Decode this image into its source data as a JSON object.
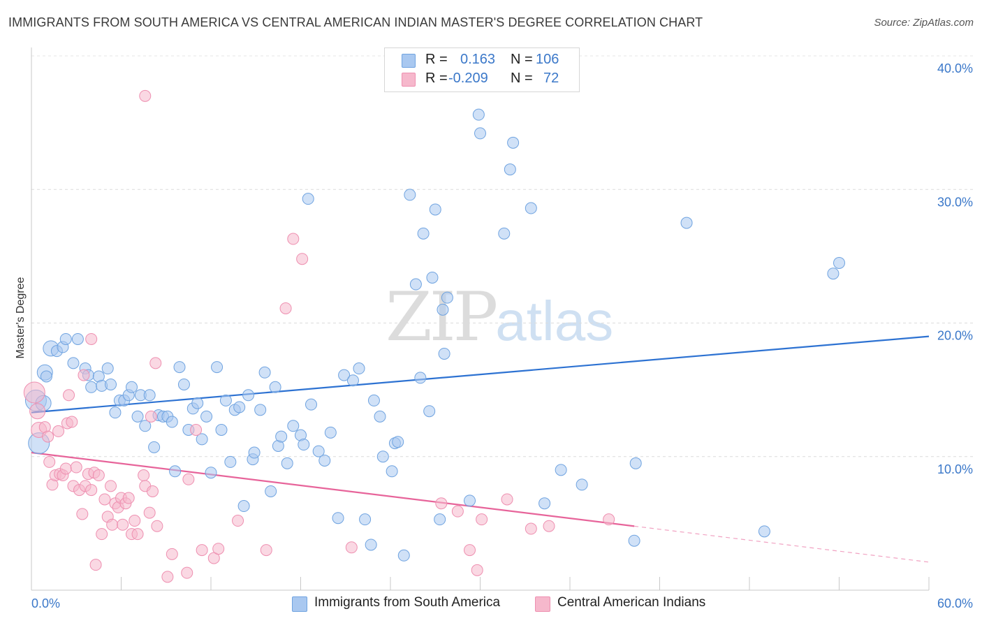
{
  "title": "IMMIGRANTS FROM SOUTH AMERICA VS CENTRAL AMERICAN INDIAN MASTER'S DEGREE CORRELATION CHART",
  "source": "Source: ZipAtlas.com",
  "watermark": {
    "zip": "ZIP",
    "atlas": "atlas"
  },
  "legend": {
    "rows": [
      {
        "r_label": "R =",
        "r_value": "0.163",
        "n_label": "N =",
        "n_value": "106",
        "color": "#a9c8f0"
      },
      {
        "r_label": "R =",
        "r_value": "-0.209",
        "n_label": "N =",
        "n_value": "72",
        "color": "#f6b8cc"
      }
    ]
  },
  "bottom_legend": [
    {
      "label": "Immigrants from South America",
      "color": "#a9c8f0"
    },
    {
      "label": "Central American Indians",
      "color": "#f6b8cc"
    }
  ],
  "chart_data": {
    "type": "scatter",
    "ylabel": "Master's Degree",
    "xlim": [
      0,
      60
    ],
    "ylim": [
      0,
      40
    ],
    "x_tick_labels": [
      "0.0%",
      "60.0%"
    ],
    "y_ticks": [
      10,
      20,
      30,
      40
    ],
    "y_tick_labels": [
      "10.0%",
      "20.0%",
      "30.0%",
      "40.0%"
    ],
    "grid": true,
    "series": [
      {
        "name": "Immigrants from South America",
        "color": "#6fa3e0",
        "fill": "#a9c8f0",
        "trend": {
          "x0": 0,
          "y0": 13.3,
          "x1": 60,
          "y1": 19.0,
          "solid_to": 60
        },
        "points": [
          [
            0.3,
            14.2,
            3
          ],
          [
            0.9,
            16.3,
            2
          ],
          [
            1.3,
            18.1,
            2
          ],
          [
            1.7,
            17.9,
            1
          ],
          [
            2.1,
            18.2,
            1
          ],
          [
            2.3,
            18.8,
            1
          ],
          [
            2.8,
            17.0,
            1
          ],
          [
            3.1,
            18.8,
            1
          ],
          [
            3.6,
            16.6,
            1
          ],
          [
            3.8,
            16.1,
            1
          ],
          [
            4.0,
            15.2,
            1
          ],
          [
            4.5,
            16.0,
            1
          ],
          [
            4.7,
            15.3,
            1
          ],
          [
            5.1,
            16.6,
            1
          ],
          [
            5.3,
            15.4,
            1
          ],
          [
            5.6,
            13.3,
            1
          ],
          [
            5.9,
            14.2,
            1
          ],
          [
            6.2,
            14.2,
            1
          ],
          [
            6.5,
            14.6,
            1
          ],
          [
            6.7,
            15.2,
            1
          ],
          [
            7.1,
            13.0,
            1
          ],
          [
            7.3,
            14.6,
            1
          ],
          [
            7.6,
            12.3,
            1
          ],
          [
            7.9,
            14.6,
            1
          ],
          [
            8.2,
            10.7,
            1
          ],
          [
            8.5,
            13.1,
            1
          ],
          [
            8.8,
            13.0,
            1
          ],
          [
            9.1,
            13.0,
            1
          ],
          [
            9.4,
            12.6,
            1
          ],
          [
            9.6,
            8.9,
            1
          ],
          [
            9.9,
            16.7,
            1
          ],
          [
            10.2,
            15.4,
            1
          ],
          [
            10.5,
            12.0,
            1
          ],
          [
            10.8,
            13.6,
            1
          ],
          [
            11.1,
            14.0,
            1
          ],
          [
            11.4,
            11.3,
            1
          ],
          [
            11.7,
            13.0,
            1
          ],
          [
            12.0,
            8.8,
            1
          ],
          [
            12.4,
            16.7,
            1
          ],
          [
            12.7,
            12.0,
            1
          ],
          [
            13.0,
            14.2,
            1
          ],
          [
            13.3,
            9.6,
            1
          ],
          [
            13.6,
            13.5,
            1
          ],
          [
            13.9,
            13.7,
            1
          ],
          [
            14.2,
            6.3,
            1
          ],
          [
            14.5,
            14.6,
            1
          ],
          [
            14.8,
            9.8,
            1
          ],
          [
            14.9,
            10.3,
            1
          ],
          [
            15.3,
            13.5,
            1
          ],
          [
            15.6,
            16.3,
            1
          ],
          [
            16.0,
            7.4,
            1
          ],
          [
            16.3,
            15.2,
            1
          ],
          [
            16.5,
            10.8,
            1
          ],
          [
            16.7,
            11.5,
            1
          ],
          [
            17.1,
            9.5,
            1
          ],
          [
            17.5,
            12.3,
            1
          ],
          [
            18.0,
            11.6,
            1
          ],
          [
            18.2,
            10.9,
            1
          ],
          [
            18.5,
            29.3,
            1
          ],
          [
            18.7,
            13.9,
            1
          ],
          [
            19.2,
            10.4,
            1
          ],
          [
            19.6,
            9.7,
            1
          ],
          [
            20.0,
            11.8,
            1
          ],
          [
            20.5,
            5.4,
            1
          ],
          [
            20.9,
            16.1,
            1
          ],
          [
            21.5,
            15.7,
            1
          ],
          [
            21.9,
            16.6,
            1
          ],
          [
            22.3,
            5.3,
            1
          ],
          [
            22.7,
            3.4,
            1
          ],
          [
            22.9,
            14.2,
            1
          ],
          [
            23.3,
            13.0,
            1
          ],
          [
            23.5,
            10.0,
            1
          ],
          [
            24.1,
            8.9,
            1
          ],
          [
            24.3,
            11.0,
            1
          ],
          [
            24.5,
            11.1,
            1
          ],
          [
            24.9,
            2.6,
            1
          ],
          [
            25.3,
            29.6,
            1
          ],
          [
            25.7,
            22.9,
            1
          ],
          [
            26.0,
            15.9,
            1
          ],
          [
            26.2,
            26.7,
            1
          ],
          [
            26.6,
            13.4,
            1
          ],
          [
            26.8,
            23.4,
            1
          ],
          [
            27.0,
            28.5,
            1
          ],
          [
            27.3,
            5.3,
            1
          ],
          [
            27.5,
            21.0,
            1
          ],
          [
            27.6,
            17.7,
            1
          ],
          [
            27.8,
            21.9,
            1
          ],
          [
            29.9,
            35.6,
            1
          ],
          [
            29.3,
            6.7,
            1
          ],
          [
            30.0,
            34.2,
            1
          ],
          [
            31.6,
            26.7,
            1
          ],
          [
            32.0,
            31.5,
            1
          ],
          [
            32.2,
            33.5,
            1
          ],
          [
            33.4,
            28.6,
            1
          ],
          [
            34.3,
            6.5,
            1
          ],
          [
            35.4,
            9.0,
            1
          ],
          [
            36.8,
            7.9,
            1
          ],
          [
            40.3,
            3.7,
            1
          ],
          [
            40.4,
            9.5,
            1
          ],
          [
            43.8,
            27.5,
            1
          ],
          [
            49.0,
            4.4,
            1
          ],
          [
            53.6,
            23.7,
            1
          ],
          [
            54.0,
            24.5,
            1
          ],
          [
            0.5,
            11.0,
            3
          ],
          [
            1.0,
            16.0,
            1
          ],
          [
            0.8,
            14.0,
            2
          ]
        ]
      },
      {
        "name": "Central American Indians",
        "color": "#ee8fb0",
        "fill": "#f6b8cc",
        "trend": {
          "x0": 0,
          "y0": 10.3,
          "x1": 60,
          "y1": 2.1,
          "solid_to": 40.3
        },
        "points": [
          [
            0.2,
            14.8,
            3
          ],
          [
            0.4,
            13.4,
            2
          ],
          [
            0.5,
            12.0,
            2
          ],
          [
            0.9,
            12.2,
            1
          ],
          [
            1.1,
            11.5,
            1
          ],
          [
            1.2,
            9.6,
            1
          ],
          [
            1.4,
            7.9,
            1
          ],
          [
            1.6,
            8.6,
            1
          ],
          [
            1.8,
            11.9,
            1
          ],
          [
            1.9,
            8.7,
            1
          ],
          [
            2.1,
            8.6,
            1
          ],
          [
            2.3,
            9.1,
            1
          ],
          [
            2.4,
            12.5,
            1
          ],
          [
            2.5,
            14.6,
            1
          ],
          [
            2.7,
            12.6,
            1
          ],
          [
            2.8,
            7.8,
            1
          ],
          [
            3.0,
            9.2,
            1
          ],
          [
            3.2,
            7.5,
            1
          ],
          [
            3.4,
            5.7,
            1
          ],
          [
            3.6,
            7.8,
            1
          ],
          [
            3.8,
            8.7,
            1
          ],
          [
            4.0,
            7.5,
            1
          ],
          [
            4.2,
            8.8,
            1
          ],
          [
            4.3,
            1.9,
            1
          ],
          [
            4.5,
            8.6,
            1
          ],
          [
            4.7,
            4.2,
            1
          ],
          [
            4.9,
            6.8,
            1
          ],
          [
            5.1,
            5.5,
            1
          ],
          [
            5.3,
            7.8,
            1
          ],
          [
            5.4,
            4.9,
            1
          ],
          [
            5.6,
            6.5,
            1
          ],
          [
            5.8,
            6.2,
            1
          ],
          [
            6.0,
            6.9,
            1
          ],
          [
            6.1,
            4.9,
            1
          ],
          [
            6.3,
            6.5,
            1
          ],
          [
            6.5,
            6.9,
            1
          ],
          [
            6.7,
            4.2,
            1
          ],
          [
            6.9,
            5.2,
            1
          ],
          [
            7.1,
            4.2,
            1
          ],
          [
            7.5,
            8.6,
            1
          ],
          [
            7.6,
            7.8,
            1
          ],
          [
            7.9,
            5.8,
            1
          ],
          [
            8.1,
            7.4,
            1
          ],
          [
            8.4,
            4.8,
            1
          ],
          [
            9.1,
            1.0,
            1
          ],
          [
            9.4,
            2.7,
            1
          ],
          [
            10.4,
            1.3,
            1
          ],
          [
            10.5,
            8.3,
            1
          ],
          [
            11.0,
            12.0,
            1
          ],
          [
            11.4,
            3.0,
            1
          ],
          [
            12.2,
            2.4,
            1
          ],
          [
            12.5,
            3.1,
            1
          ],
          [
            13.8,
            5.2,
            1
          ],
          [
            15.7,
            3.0,
            1
          ],
          [
            17.0,
            21.1,
            1
          ],
          [
            17.5,
            26.3,
            1
          ],
          [
            18.1,
            24.8,
            1
          ],
          [
            21.4,
            3.2,
            1
          ],
          [
            27.4,
            6.5,
            1
          ],
          [
            28.5,
            5.9,
            1
          ],
          [
            29.3,
            3.0,
            1
          ],
          [
            29.8,
            1.5,
            1
          ],
          [
            30.1,
            5.3,
            1
          ],
          [
            31.8,
            6.8,
            1
          ],
          [
            33.4,
            4.6,
            1
          ],
          [
            34.6,
            4.8,
            1
          ],
          [
            38.6,
            5.3,
            1
          ],
          [
            7.6,
            37.0,
            1
          ],
          [
            8.0,
            13.0,
            1
          ],
          [
            4.0,
            18.8,
            1
          ],
          [
            8.3,
            17.0,
            1
          ],
          [
            3.5,
            16.1,
            1
          ]
        ]
      }
    ]
  }
}
